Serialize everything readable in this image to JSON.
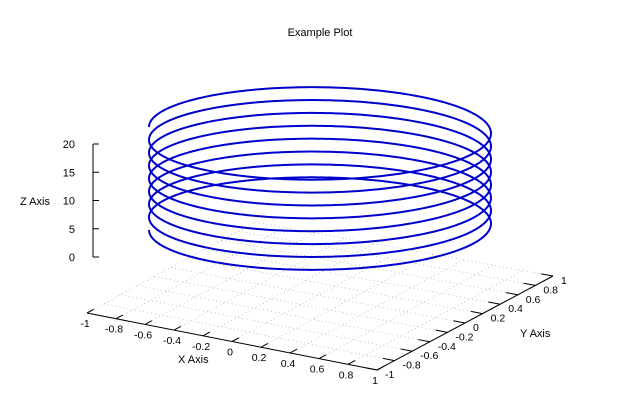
{
  "chart_data": {
    "type": "line3d",
    "title": "Example Plot",
    "xlabel": "X Axis",
    "ylabel": "Y Axis",
    "zlabel": "Z Axis",
    "xlim": [
      -1,
      1
    ],
    "ylim": [
      -1,
      1
    ],
    "zlim": [
      0,
      20
    ],
    "x_ticks": [
      "-1",
      "-0.8",
      "-0.6",
      "-0.4",
      "-0.2",
      "0",
      "0.2",
      "0.4",
      "0.6",
      "0.8",
      "1"
    ],
    "y_ticks": [
      "-1",
      "-0.8",
      "-0.6",
      "-0.4",
      "-0.2",
      "0",
      "0.2",
      "0.4",
      "0.6",
      "0.8",
      "1"
    ],
    "z_ticks": [
      "0",
      "5",
      "10",
      "15",
      "20"
    ],
    "grid": true,
    "series": [
      {
        "kind": "parametric-helix",
        "x": "cos(t)",
        "y": "sin(t)",
        "z_start": 0,
        "z_end": 20,
        "turns": 8,
        "color": "#0000cc"
      }
    ]
  }
}
